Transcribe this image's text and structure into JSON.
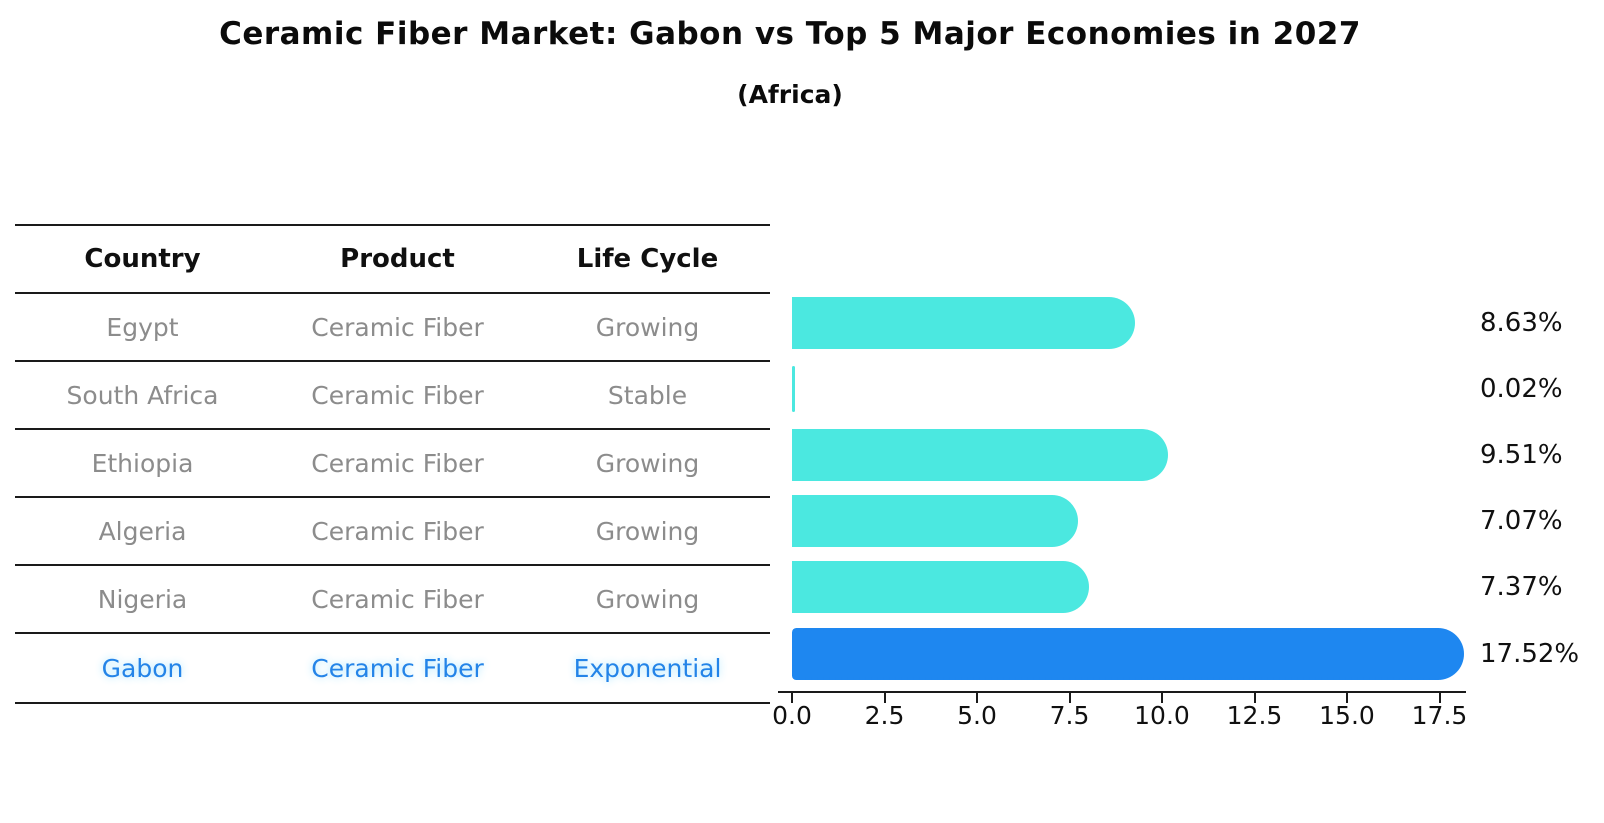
{
  "title": "Ceramic Fiber Market: Gabon vs Top 5 Major Economies in 2027",
  "subtitle": "(Africa)",
  "table": {
    "headers": [
      "Country",
      "Product",
      "Life Cycle"
    ],
    "rows": [
      {
        "country": "Egypt",
        "product": "Ceramic Fiber",
        "life_cycle": "Growing",
        "highlight": false
      },
      {
        "country": "South Africa",
        "product": "Ceramic Fiber",
        "life_cycle": "Stable",
        "highlight": false
      },
      {
        "country": "Ethiopia",
        "product": "Ceramic Fiber",
        "life_cycle": "Growing",
        "highlight": false
      },
      {
        "country": "Algeria",
        "product": "Ceramic Fiber",
        "life_cycle": "Growing",
        "highlight": false
      },
      {
        "country": "Nigeria",
        "product": "Ceramic Fiber",
        "life_cycle": "Growing",
        "highlight": false
      },
      {
        "country": "Gabon",
        "product": "Ceramic Fiber",
        "life_cycle": "Exponential",
        "highlight": true
      }
    ]
  },
  "chart_data": {
    "type": "bar",
    "orientation": "horizontal",
    "categories": [
      "Egypt",
      "South Africa",
      "Ethiopia",
      "Algeria",
      "Nigeria",
      "Gabon"
    ],
    "values": [
      8.63,
      0.02,
      9.51,
      7.07,
      7.37,
      17.52
    ],
    "value_labels": [
      "8.63%",
      "0.02%",
      "9.51%",
      "7.07%",
      "7.37%",
      "17.52%"
    ],
    "highlight_index": 5,
    "x_ticks": [
      0.0,
      2.5,
      5.0,
      7.5,
      10.0,
      12.5,
      15.0,
      17.5
    ],
    "x_tick_labels": [
      "0.0",
      "2.5",
      "5.0",
      "7.5",
      "10.0",
      "12.5",
      "15.0",
      "17.5"
    ],
    "xlim": [
      0,
      18.3
    ],
    "grid": false,
    "legend": false,
    "bar_color": "#4be8e0",
    "highlight_bar_color": "#1e87f0",
    "highlight_text_color": "#2484e8",
    "table_text_color": "#8c8c8c",
    "axis_color": "#1a1a1a"
  }
}
